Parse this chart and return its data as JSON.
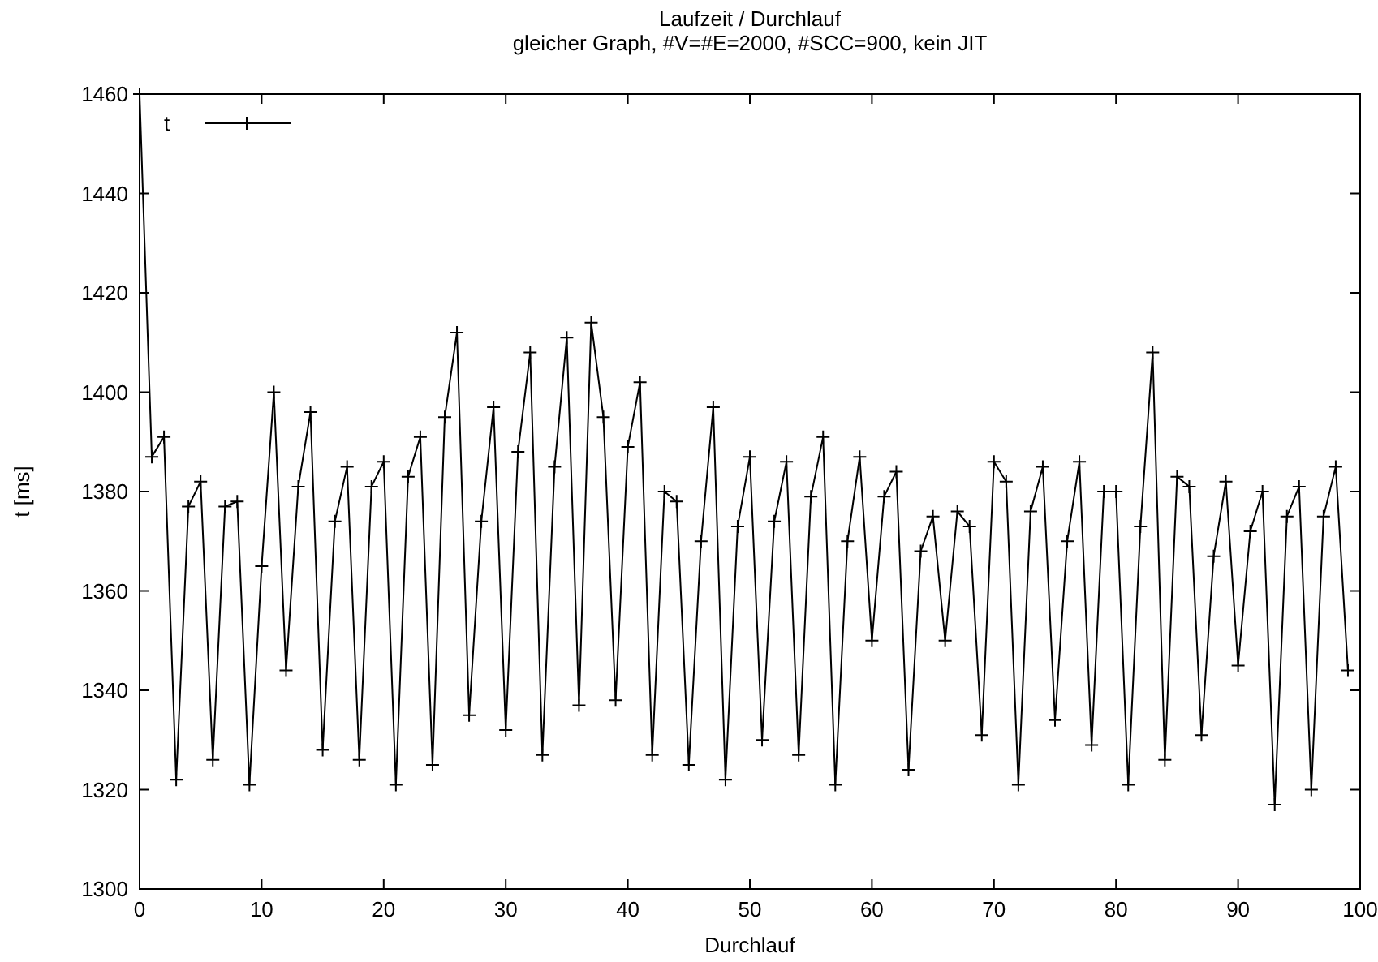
{
  "chart_data": {
    "type": "line",
    "title": "Laufzeit / Durchlauf",
    "subtitle": "gleicher Graph, #V=#E=2000, #SCC=900, kein JIT",
    "xlabel": "Durchlauf",
    "ylabel": "t [ms]",
    "x": [
      0,
      1,
      2,
      3,
      4,
      5,
      6,
      7,
      8,
      9,
      10,
      11,
      12,
      13,
      14,
      15,
      16,
      17,
      18,
      19,
      20,
      21,
      22,
      23,
      24,
      25,
      26,
      27,
      28,
      29,
      30,
      31,
      32,
      33,
      34,
      35,
      36,
      37,
      38,
      39,
      40,
      41,
      42,
      43,
      44,
      45,
      46,
      47,
      48,
      49,
      50,
      51,
      52,
      53,
      54,
      55,
      56,
      57,
      58,
      59,
      60,
      61,
      62,
      63,
      64,
      65,
      66,
      67,
      68,
      69,
      70,
      71,
      72,
      73,
      74,
      75,
      76,
      77,
      78,
      79,
      80,
      81,
      82,
      83,
      84,
      85,
      86,
      87,
      88,
      89,
      90,
      91,
      92,
      93,
      94,
      95,
      96,
      97,
      98,
      99
    ],
    "series": [
      {
        "name": "t",
        "color": "#000000",
        "values": [
          1460,
          1387,
          1391,
          1322,
          1377,
          1382,
          1326,
          1377,
          1378,
          1321,
          1365,
          1400,
          1344,
          1381,
          1396,
          1328,
          1374,
          1385,
          1326,
          1381,
          1386,
          1321,
          1383,
          1391,
          1325,
          1395,
          1412,
          1335,
          1374,
          1397,
          1332,
          1388,
          1408,
          1327,
          1385,
          1411,
          1337,
          1414,
          1395,
          1338,
          1389,
          1402,
          1327,
          1380,
          1378,
          1325,
          1370,
          1397,
          1322,
          1373,
          1387,
          1330,
          1374,
          1386,
          1327,
          1379,
          1391,
          1321,
          1370,
          1387,
          1350,
          1379,
          1384,
          1324,
          1368,
          1375,
          1350,
          1376,
          1373,
          1331,
          1386,
          1382,
          1321,
          1376,
          1385,
          1334,
          1370,
          1386,
          1329,
          1380,
          1380,
          1321,
          1373,
          1408,
          1326,
          1383,
          1381,
          1331,
          1367,
          1382,
          1345,
          1372,
          1380,
          1317,
          1375,
          1381,
          1320,
          1375,
          1385,
          1344
        ]
      }
    ],
    "xlim": [
      0,
      100
    ],
    "xticks": [
      0,
      10,
      20,
      30,
      40,
      50,
      60,
      70,
      80,
      90,
      100
    ],
    "ylim": [
      1300,
      1460
    ],
    "yticks": [
      1300,
      1320,
      1340,
      1360,
      1380,
      1400,
      1420,
      1440,
      1460
    ],
    "grid": false,
    "legend": "top left",
    "marker": "cross",
    "line_style": "solid"
  }
}
